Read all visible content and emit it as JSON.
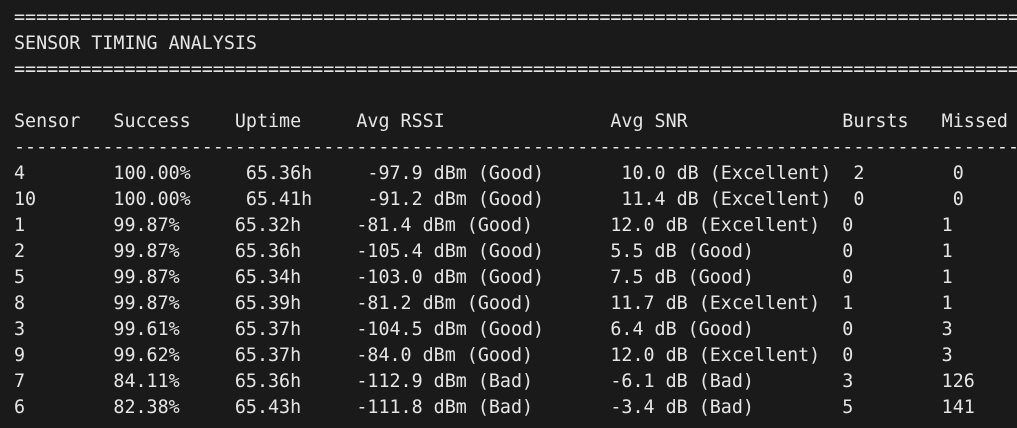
{
  "window": {
    "title_line": "SENSOR TIMING ANALYSIS"
  },
  "decorations": {
    "double_rule_char": "=",
    "single_rule_char": "-"
  },
  "colors": {
    "background": "#1a1a1a",
    "foreground": "#e5e5e5"
  },
  "table": {
    "headers": [
      "Sensor",
      "Success",
      "Uptime",
      "Avg RSSI",
      "Avg SNR",
      "Bursts",
      "Missed"
    ],
    "rows": [
      {
        "sensor": "4",
        "success": "100.00%",
        "uptime": "65.36h",
        "rssi": "-97.9 dBm (Good)",
        "snr": "10.0 dB (Excellent)",
        "bursts": "2",
        "missed": "0"
      },
      {
        "sensor": "10",
        "success": "100.00%",
        "uptime": "65.41h",
        "rssi": "-91.2 dBm (Good)",
        "snr": "11.4 dB (Excellent)",
        "bursts": "0",
        "missed": "0"
      },
      {
        "sensor": "1",
        "success": "99.87%",
        "uptime": "65.32h",
        "rssi": "-81.4 dBm (Good)",
        "snr": "12.0 dB (Excellent)",
        "bursts": "0",
        "missed": "1"
      },
      {
        "sensor": "2",
        "success": "99.87%",
        "uptime": "65.36h",
        "rssi": "-105.4 dBm (Good)",
        "snr": "5.5 dB (Good)",
        "bursts": "0",
        "missed": "1"
      },
      {
        "sensor": "5",
        "success": "99.87%",
        "uptime": "65.34h",
        "rssi": "-103.0 dBm (Good)",
        "snr": "7.5 dB (Good)",
        "bursts": "0",
        "missed": "1"
      },
      {
        "sensor": "8",
        "success": "99.87%",
        "uptime": "65.39h",
        "rssi": "-81.2 dBm (Good)",
        "snr": "11.7 dB (Excellent)",
        "bursts": "1",
        "missed": "1"
      },
      {
        "sensor": "3",
        "success": "99.61%",
        "uptime": "65.37h",
        "rssi": "-104.5 dBm (Good)",
        "snr": "6.4 dB (Good)",
        "bursts": "0",
        "missed": "3"
      },
      {
        "sensor": "9",
        "success": "99.62%",
        "uptime": "65.37h",
        "rssi": "-84.0 dBm (Good)",
        "snr": "12.0 dB (Excellent)",
        "bursts": "0",
        "missed": "3"
      },
      {
        "sensor": "7",
        "success": "84.11%",
        "uptime": "65.36h",
        "rssi": "-112.9 dBm (Bad)",
        "snr": "-6.1 dB (Bad)",
        "bursts": "3",
        "missed": "126"
      },
      {
        "sensor": "6",
        "success": "82.38%",
        "uptime": "65.43h",
        "rssi": "-111.8 dBm (Bad)",
        "snr": "-3.4 dB (Bad)",
        "bursts": "5",
        "missed": "141"
      }
    ]
  }
}
